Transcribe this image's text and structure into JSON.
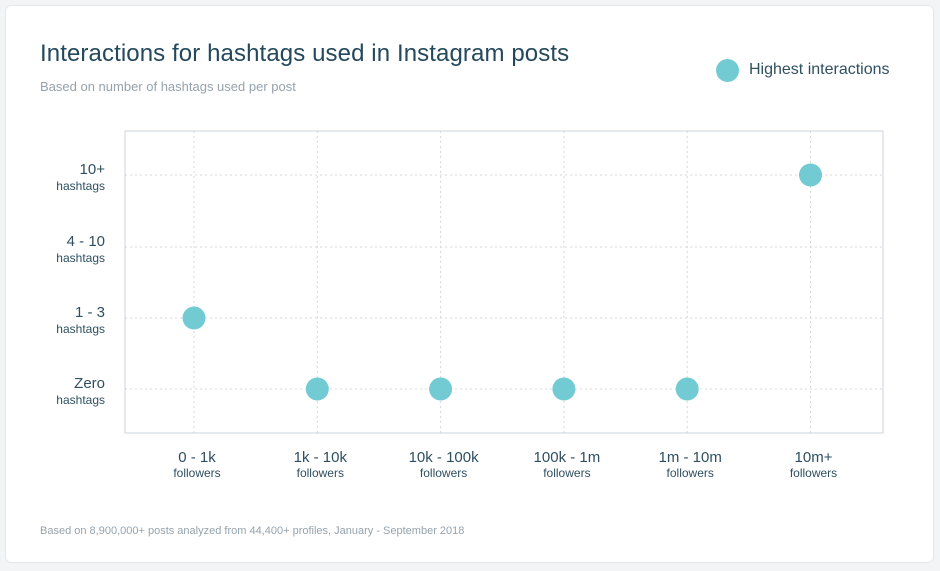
{
  "header": {
    "title": "Interactions for hashtags used in Instagram posts",
    "subtitle": "Based on number of hashtags used per post"
  },
  "legend": {
    "label": "Highest interactions",
    "color": "#72cbd3"
  },
  "footnote": "Based on 8,900,000+ posts analyzed from 44,400+ profiles, January - September 2018",
  "chart_data": {
    "type": "scatter",
    "categories": [
      "0 - 1k",
      "1k - 10k",
      "10k - 100k",
      "100k - 1m",
      "1m - 10m",
      "10m+"
    ],
    "x_sublabel": "followers",
    "y_categories": [
      "Zero",
      "1 - 3",
      "4 - 10",
      "10+"
    ],
    "y_sublabel": "hashtags",
    "series": [
      {
        "name": "Highest interactions",
        "color": "#72cbd3",
        "values": [
          "1 - 3",
          "Zero",
          "Zero",
          "Zero",
          "Zero",
          "10+"
        ]
      }
    ],
    "grid": true,
    "legend_position": "top-right"
  }
}
